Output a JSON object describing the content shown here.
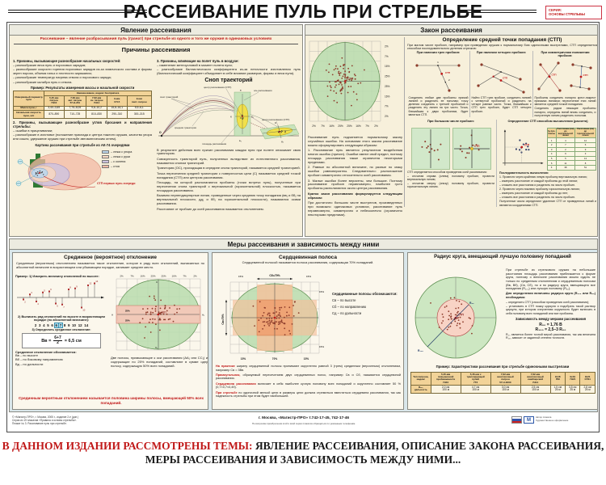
{
  "labels": {
    "ctp": "СТП",
    "origin": "О"
  },
  "palette": {
    "accent_red": "#c01818",
    "panel_cream": "#f7f0db",
    "band_blue": "#d9e6ea",
    "ellipse_green": "#b9dcae",
    "core_salmon": "#f4b793",
    "hole_brown": "#8d3c2b"
  },
  "header": {
    "title": "РАССЕИВАНИЕ ПУЛЬ ПРИ СТРЕЛЬБЕ",
    "series_line1": "СЕРИЯ:",
    "series_line2": "ОСНОВЫ СТРЕЛЬБЫ",
    "poster_number": "3"
  },
  "phenomenon": {
    "panel_title": "Явление рассеивания",
    "definition": "Рассеивание – явление разбрасывания пуль (гранат) при стрельбе из одного и того же оружия в одинаковых условиях",
    "causes_title": "Причины рассеивания",
    "cause1_title": "1. Причины, вызывающие разнообразие начальных скоростей:",
    "cause1_items": [
      "– разнообразие веса пуль и пороховых зарядов;",
      "– разнообразие скорости горения пороховых зарядов из-за химического состава и формы зерен пороха, объема гильз и плотности заряжания;",
      "– разнообразие температур нагрева ствола и порохового заряда;",
      "– разнообразие калибра пуль и ствола."
    ],
    "cause3_title": "3. Причины, влияющие на полет пуль в воздухе:",
    "cause3_items": [
      "– изменение метеоусловий в момент полета пули;",
      "– разнообразие баллистического коэффициента из-за неточности изготовления пуль (баллистический коэффициент объединяет в себе влияние размеров, формы и веса пули)."
    ],
    "cause2_title": "2. Причины, вызывающие разнообразие углов бросания и направления стрельбы:",
    "cause2_items": [
      "– ошибки в прицеливании;",
      "– разнообразие в изготовке (положение приклада и центра тяжести оружия, качество упора или сошек, удержание оружия при стрельбе автоматическим огнем)."
    ],
    "example_title": "Пример: Результаты измерения массы и начальной скорости",
    "ammo_table": {
      "param_header": "Измеряемый параметр пули",
      "group_header": "Наименование, индекс боеприпаса",
      "columns": [
        "5,45-мм\nпатрон\n7Н10",
        "7,62-мм\nавт. патрон\n57-Н-231",
        "7,62-мм\nсн. патрон\n7Н14",
        "9-мм\nСП-5",
        "9-мм\nпист. патрон"
      ],
      "row1_label": "Масса пули, г",
      "row1_values": [
        "3,40–3,65",
        "7,75–8,05",
        "9,8–10,2",
        "15,8–16,1",
        "5,9–6,1"
      ],
      "row2_label": "Начальная скорость пули, м/с",
      "row2_values": [
        "870–890",
        "710–725",
        "810–830",
        "290–310",
        "300–315"
      ]
    },
    "ak_title": "Картина рассеивания при стрельбе из АК-74 очередями",
    "ak_legend": [
      "– лежа с упора",
      "– лежа с руки",
      "– с колена",
      "– стоя"
    ],
    "ak_note": "СТП первых пуль очереди",
    "sheaf_title": "Сноп траекторий",
    "sheaf_labels": {
      "sheaf": "сноп траекторий",
      "mean": "средняя траектория",
      "axis": "ось рассеивания",
      "center": "центр рассеивания (СТП)",
      "area": "площадь рассеивания"
    },
    "sheaf_letters": {
      "v": "в",
      "v1": "в₁",
      "b": "б",
      "b1": "б₁",
      "d": "д",
      "d1": "д₁"
    },
    "paragraphs": [
      "В результате действия всех причин рассеивания каждая пуля при полете описывает свою траекторию.",
      "Совокупность траекторий пуль, полученных вследствие их естественного рассеивания, называется снопом траекторий.",
      "Траектория (ОС), проходящая в середине снопа траекторий, называется средней траекторией.",
      "Точка пересечения средней траектории с поверхностью цели (С) называется средней точкой попадания (СТП) или центром рассеивания.",
      "Площадь, на которой располагаются пробоины (точки встречи пуль), полученные при пересечении снопа траекторий с вертикальной (горизонтальной) плоскостью, называется площадью рассеивания.",
      "Взаимно перпендикулярные линии, проведенные через среднюю точку попадания (вв₁ и бб₁ на вертикальной плоскости, дд₁ и бб₁ на горизонтальной плоскости), называются осями рассеивания.",
      "Расстояние от пробоин до осей рассеивания называется отклонением."
    ]
  },
  "law": {
    "panel_title": "Закон рассеивания",
    "percent_scale": [
      "2%",
      "7%",
      "16%",
      "25%",
      "25%",
      "16%",
      "7%",
      "2%"
    ],
    "paragraphs": [
      "Рассеивание пуль подчиняется нормальному закону случайных ошибок. На основании этого закона рассеивание можно сформулировать следующим образом:",
      "1. Рассеивание пуль является результатом воздействия многих ошибок (причин). Ошибки имеют свой предел, поэтому площадь рассеивания также ограничена некоторыми пределами.",
      "2. Равные по абсолютной величине, но разные по знаку ошибки равновероятны. Следовательно: расположение пробоин симметрично относительно осей рассеивания.",
      "3. Малые ошибки более вероятны, чем большие. Поэтому рассеивание пробоин неравномерно, наиболее густо пробоины располагаются около центра рассеивания.",
      "Кратко закон рассеивания формулируется следующим образом:",
      "При достаточно большом числе выстрелов, произведенных при возможно одинаковых условиях, рассеивание пуль неравномерно, симметрично и небесконечно (ограничено некоторыми пределами)."
    ],
    "stp_title": "Определение средней точки попадания (СТП)",
    "stp_intro": "При малом числе пробоин, например при приведении оружия к нормальному бою одиночными выстрелами, СТП определяется способом последовательного деления отрезков:",
    "methods": [
      {
        "label": "При наличии трех пробоин:",
        "marks": [
          "1",
          "2"
        ],
        "caption": "Соединить любые две пробоины прямой линией и разделить ее пополам; точку деления соединить с третьей пробоиной и разделить эту линию на три части. Точка, ближайшая к двум пробоинам, будет являться СТП."
      },
      {
        "label": "При наличии четырех пробоин:",
        "caption": "Найти СТП трех пробоин, соединить линией с четвертой пробоиной и разделить на четыре равные части. Точка, ближайшая к СТП трех пробоин, будет СТП четырех пробоин."
      },
      {
        "label": "При симметричном положении пробоин:",
        "caption": "Пробоины соединить попарно крест-накрест прямыми линиями; пересечение этих линий является средней точкой попадания.",
        "caption2": "Соединить рядом лежащие пробоины попарно, середины линий вновь соединить, и полученную линию разделить пополам."
      }
    ],
    "many_holes": {
      "label": "При большом числе пробоин:",
      "caption_intro": "СТП определяется способом проведения осей рассеивания:",
      "items": [
        "– отсчитав справа (слева) половину пробоин, провести вертикальную линию;",
        "– отсчитав сверху (снизу) половину пробоин, провести горизонтальную линию."
      ]
    },
    "calc": {
      "title": "Определение СТП способом вычисления (расчета)",
      "headers": [
        "№ про-боины",
        "Расстояние (см) до вертикальной линии",
        "Расстояние (см) до горизонтальной линии"
      ],
      "rows": [
        [
          "1",
          "4",
          "12"
        ],
        [
          "2",
          "7",
          "6"
        ],
        [
          "3",
          "2",
          "9"
        ],
        [
          "4",
          "9",
          "3"
        ],
        [
          "5",
          "5",
          "13"
        ],
        [
          "6",
          "11",
          "8"
        ],
        [
          "Σ",
          "38",
          "51"
        ]
      ],
      "seq_title": "Последовательность вычисления:",
      "seq_items": [
        "1. Провести через крайнюю левую пробоину вертикальную линию;",
        "– измерить расстояние от каждой пробоины до этой линии;",
        "– сложить все расстояния и разделить на число пробоин.",
        "2. Провести через нижнюю пробоину горизонтальную линию;",
        "– измерить расстояние от каждой пробоины до нее;",
        "– сложить все расстояния и разделить на число пробоин.",
        "Полученные числа определяют удаление СТП от проведенных линий и являются координатами СТП."
      ]
    }
  },
  "measures": {
    "band_title": "Меры рассеивания и зависимость между ними",
    "median": {
      "title": "Срединное (вероятное) отклонение",
      "definition": "Срединным (вероятным) отклонением называется такое отклонение, которое в ряду всех отклонений, выписанных по абсолютной величине в возрастающем или убывающем порядке, занимает среднее место.",
      "step1": "Пример: 1) Измерить величину отклонений по высоте:",
      "step2": "2) Выписать ряд отклонений по высоте в возрастающем порядке (по абсолютной величине):",
      "step3": "3) Определить срединное отклонение:",
      "stems": [
        -2,
        3,
        -4,
        5,
        6,
        -6,
        -7,
        8,
        9,
        -10,
        12,
        14
      ],
      "numbers": [
        "2",
        "3",
        "4",
        "5",
        "6",
        "6",
        "7",
        "8",
        "9",
        "10",
        "12",
        "14"
      ],
      "formula": {
        "lhs": "Вв =",
        "num": "6+7",
        "den": "2",
        "rhs": "= 6,5 см"
      },
      "notation_title": "Срединное отклонение обозначается:",
      "notation": [
        "Вв – по высоте",
        "Вб – по боковому направлению",
        "Вд – по дальности"
      ],
      "scale": [
        "2%",
        "7%",
        "16%",
        "25%",
        "25%",
        "16%",
        "7%",
        "2%"
      ],
      "band_labels": {
        "a": "А",
        "a1": "А₁",
        "c": "С",
        "c1": "С₁",
        "p25": "25%"
      },
      "band_note": "Две полосы, примыкающие к оси рассеивания (АА₁ или СС₁) и содержащие по 25% попаданий, составляют в сумме одну полосу, содержащую 50% всех попаданий.",
      "red_note": "Срединным вероятным отклонением называется половина ширины полосы, вмещающей 50% всех попаданий."
    },
    "core": {
      "title": "Сердцевинная полоса",
      "definition": "Сердцевинной полосой называется полоса рассеивания, содержащая 70% попаданий.",
      "top_label": "Сб=70%",
      "left_label": "Св=70%",
      "pct_side": "15%",
      "bottom_scale": [
        "15%",
        "70%",
        "15%"
      ],
      "notation_title": "Сердцевинные полосы обозначаются:",
      "notation": [
        "Св – по высоте",
        "Сб – по направлению",
        "Сд – по дальности"
      ],
      "paragraphs": [
        {
          "lead": "На практике",
          "rest": " ширину сердцевинной полосы принимают округленно равной 3 (трем) срединным (вероятным) отклонениям, например Св = 3Вв."
        },
        {
          "lead": "Прямоугольник,",
          "rest": " образуемый пересечением двух сердцевинных полос, например Св и Сб, называется сердцевиной рассеивания."
        },
        {
          "lead": "Сердцевина рассеивания",
          "rest": " включает в себя наиболее кучную половину всех попаданий и округленно составляет 50 % (0,7×0,7≈0,49)."
        },
        {
          "lead": "При стрельбе",
          "rest": " по одиночной мелкой цели в размеры цели должна стремиться вместиться сердцевина рассеивания, так как надежность стрельбы при этом будет наибольшей."
        }
      ]
    },
    "radius": {
      "title": "Радиус круга, вмещающий лучшую половину попаданий",
      "p1": "При стрельбе из стрелкового оружия на небольшие расстояния площадь рассеивания приближается к форме круга, поэтому о величине рассеивания можно судить не только по срединным отклонениям и сердцевинным полосам (Вв, Вб), (Св, Сб), но и по радиусу круга, вмещающего все попадания (R₁₀₀) или лучшую половину (R₅₀).",
      "steps_title": "Для определения величины радиуса круга (R₁₀₀ или R₅₀) необходимо:",
      "steps": [
        "– определить СТП (способом проведения осей рассеивания);",
        "– установить в СТП ножку циркуля и подобрать такой раствор циркуля, при котором очерченная окружность будет включать в себя половину всех попаданий или все пробоины."
      ],
      "dep_title": "Зависимость между мерами рассеивания",
      "formula1": "R₅₀ = 1,76 В",
      "formula2": "R₁₀₀ = 2,5–3 R₅₀",
      "note": "R₅₀ является более точной мерой рассеивания, так как величина R₁₀₀ зависит от заданной степени точности.",
      "diagram_labels": {
        "r50": "R₅₀",
        "r100": "R₁₀₀"
      },
      "example_title": "Пример: Характеристики рассеивания при стрельбе одиночными выстрелами",
      "table": {
        "col0_header": "Тип патрона,\nиндекс",
        "columns": [
          "5,45-мм\nповышенной\nпробиваемости\n7Н10",
          "5,45-мм с\nтрассирующей\nпулей\n7Т3",
          "7,62-мм\nвинтовочный\nпатрон\n57-Н-323С",
          "7,62-мм\nвинтовочный\nснайперский\n7Н14",
          "9х18\nПМ",
          "9х19\n7Н21",
          "9х21\nСП11"
        ],
        "row_label": "R₅₀,\nдальность",
        "values": [
          "2,0 см\n100 м",
          "4,7 см\n100 м",
          "3,0 см\n100 м",
          "2,5 см\n100 м",
          "1,5 см\n25 м",
          "3,5 см\n25 м",
          "2,8 см\n25 м"
        ]
      }
    }
  },
  "publisher": {
    "left_lines": [
      "© «Магистр-ПРО», г. Москва, 2005 г., издание 2-е (доп.)",
      "Серия из 19 плакатов «Правила и основы ст­рельбы».",
      "Плакат № 3. Рассеивание пуль при стрельбе."
    ],
    "center": "г. Москва, «Магистр-ПРО»      т.742-17-45, 742-17-46",
    "center_small": "По вопросам приобретения этой и всей серии плакатов обращаться по указанным телефонам.",
    "logo_letter": "М",
    "right_lines": [
      "Автор плаката",
      "Художественное оформление"
    ]
  },
  "footer": {
    "lead": "В ДАННОМ ИЗДАНИИ РАССМОТРЕНЫ ТЕМЫ:",
    "rest1": "ЯВЛЕНИЕ РАССЕИВАНИЯ, ОПИСАНИЕ ЗАКОНА РАССЕИВАНИЯ,",
    "rest2": "МЕРЫ РАССЕИВАНИЯ И ЗАВИСИМОСТЬ МЕЖДУ НИМИ..."
  }
}
